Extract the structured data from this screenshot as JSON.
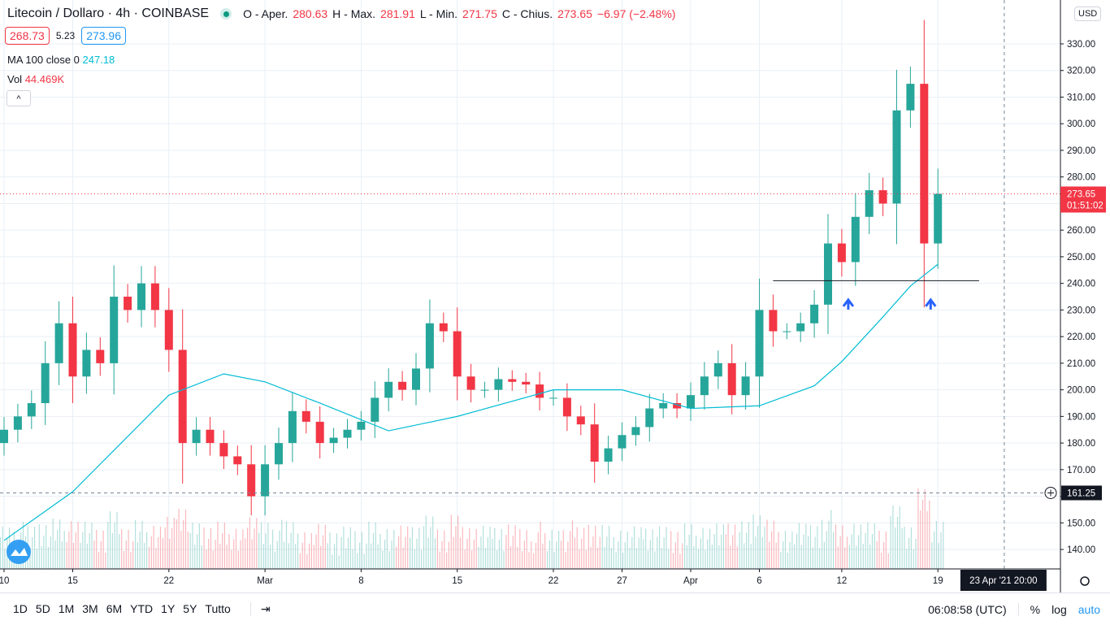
{
  "header": {
    "title": "Litecoin / Dollaro · 4h · COINBASE",
    "o_label": "O - Aper.",
    "o": "280.63",
    "h_label": "H - Max.",
    "h": "281.91",
    "l_label": "L - Min.",
    "l": "271.75",
    "c_label": "C - Chius.",
    "c": "273.65",
    "change": "−6.97 (−2.48%)"
  },
  "quote": {
    "bid": "268.73",
    "spread": "5.23",
    "ask": "273.96"
  },
  "indicators": {
    "ma_label": "MA 100 close 0",
    "ma_value": "247.18",
    "vol_label": "Vol",
    "vol_value": "44.469K"
  },
  "price_axis": {
    "currency": "USD",
    "last_price": "273.65",
    "countdown": "01:51:02",
    "crosshair_price": "161.25"
  },
  "time_axis": {
    "crosshair_label": "23 Apr '21  20:00"
  },
  "toolbar": {
    "ranges": [
      "1D",
      "5D",
      "1M",
      "3M",
      "6M",
      "YTD",
      "1Y",
      "5Y",
      "Tutto"
    ],
    "clock": "06:08:58 (UTC)",
    "percent": "%",
    "log": "log",
    "auto": "auto"
  },
  "colors": {
    "up": "#26a69a",
    "down": "#f23645",
    "ma": "#00bcd4",
    "accent": "#2196f3"
  },
  "chart_data": {
    "type": "candlestick",
    "symbol": "LTC/USD",
    "interval": "4h",
    "ylim": [
      135,
      342
    ],
    "yticks": [
      140,
      150,
      160,
      170,
      180,
      190,
      200,
      210,
      220,
      230,
      240,
      250,
      260,
      270,
      280,
      290,
      300,
      310,
      320,
      330
    ],
    "xticks": [
      {
        "date": "2021-02-10",
        "label": "10"
      },
      {
        "date": "2021-02-15",
        "label": "15"
      },
      {
        "date": "2021-02-22",
        "label": "22"
      },
      {
        "date": "2021-03-01",
        "label": "Mar"
      },
      {
        "date": "2021-03-08",
        "label": "8"
      },
      {
        "date": "2021-03-15",
        "label": "15"
      },
      {
        "date": "2021-03-22",
        "label": "22"
      },
      {
        "date": "2021-03-27",
        "label": "27"
      },
      {
        "date": "2021-04-01",
        "label": "Apr"
      },
      {
        "date": "2021-04-06",
        "label": "6"
      },
      {
        "date": "2021-04-12",
        "label": "12"
      },
      {
        "date": "2021-04-19",
        "label": "19"
      }
    ],
    "grid": true,
    "closes": [
      [
        "2021-02-09",
        180
      ],
      [
        "2021-02-10",
        185
      ],
      [
        "2021-02-11",
        190
      ],
      [
        "2021-02-12",
        195
      ],
      [
        "2021-02-13",
        210
      ],
      [
        "2021-02-14",
        225
      ],
      [
        "2021-02-15",
        205
      ],
      [
        "2021-02-16",
        215
      ],
      [
        "2021-02-17",
        210
      ],
      [
        "2021-02-18",
        235
      ],
      [
        "2021-02-19",
        230
      ],
      [
        "2021-02-20",
        240
      ],
      [
        "2021-02-21",
        230
      ],
      [
        "2021-02-22",
        215
      ],
      [
        "2021-02-23",
        180
      ],
      [
        "2021-02-24",
        185
      ],
      [
        "2021-02-25",
        180
      ],
      [
        "2021-02-26",
        175
      ],
      [
        "2021-02-27",
        172
      ],
      [
        "2021-02-28",
        160
      ],
      [
        "2021-03-01",
        172
      ],
      [
        "2021-03-02",
        180
      ],
      [
        "2021-03-03",
        192
      ],
      [
        "2021-03-04",
        188
      ],
      [
        "2021-03-05",
        180
      ],
      [
        "2021-03-06",
        182
      ],
      [
        "2021-03-07",
        185
      ],
      [
        "2021-03-08",
        188
      ],
      [
        "2021-03-09",
        197
      ],
      [
        "2021-03-10",
        203
      ],
      [
        "2021-03-11",
        200
      ],
      [
        "2021-03-12",
        208
      ],
      [
        "2021-03-13",
        225
      ],
      [
        "2021-03-14",
        222
      ],
      [
        "2021-03-15",
        205
      ],
      [
        "2021-03-16",
        200
      ],
      [
        "2021-03-17",
        200
      ],
      [
        "2021-03-18",
        204
      ],
      [
        "2021-03-19",
        203
      ],
      [
        "2021-03-20",
        202
      ],
      [
        "2021-03-21",
        197
      ],
      [
        "2021-03-22",
        197
      ],
      [
        "2021-03-23",
        190
      ],
      [
        "2021-03-24",
        187
      ],
      [
        "2021-03-25",
        173
      ],
      [
        "2021-03-26",
        178
      ],
      [
        "2021-03-27",
        183
      ],
      [
        "2021-03-28",
        186
      ],
      [
        "2021-03-29",
        193
      ],
      [
        "2021-03-30",
        195
      ],
      [
        "2021-03-31",
        193
      ],
      [
        "2021-04-01",
        198
      ],
      [
        "2021-04-02",
        205
      ],
      [
        "2021-04-03",
        210
      ],
      [
        "2021-04-04",
        198
      ],
      [
        "2021-04-05",
        205
      ],
      [
        "2021-04-06",
        230
      ],
      [
        "2021-04-07",
        222
      ],
      [
        "2021-04-08",
        222
      ],
      [
        "2021-04-09",
        225
      ],
      [
        "2021-04-10",
        232
      ],
      [
        "2021-04-11",
        255
      ],
      [
        "2021-04-12",
        248
      ],
      [
        "2021-04-13",
        265
      ],
      [
        "2021-04-14",
        275
      ],
      [
        "2021-04-15",
        270
      ],
      [
        "2021-04-16",
        305
      ],
      [
        "2021-04-17",
        315
      ],
      [
        "2021-04-18",
        255
      ],
      [
        "2021-04-19",
        273.65
      ]
    ],
    "ma100": [
      [
        "2021-02-10",
        143.4
      ],
      [
        "2021-02-15",
        161.7
      ],
      [
        "2021-02-22",
        198
      ],
      [
        "2021-02-26",
        206
      ],
      [
        "2021-03-01",
        203
      ],
      [
        "2021-03-05",
        195
      ],
      [
        "2021-03-10",
        184.6
      ],
      [
        "2021-03-15",
        190
      ],
      [
        "2021-03-22",
        200
      ],
      [
        "2021-03-27",
        200
      ],
      [
        "2021-04-01",
        193
      ],
      [
        "2021-04-06",
        194
      ],
      [
        "2021-04-10",
        201.5
      ],
      [
        "2021-04-12",
        210.6
      ],
      [
        "2021-04-15",
        227.4
      ],
      [
        "2021-04-17",
        239
      ],
      [
        "2021-04-19",
        247.18
      ]
    ],
    "annotations": {
      "support_line": {
        "price": 241,
        "from": "2021-04-07",
        "to": "2021-04-22"
      },
      "arrows": [
        {
          "date": "2021-04-12",
          "price": 232
        },
        {
          "date": "2021-04-18",
          "price": 232
        }
      ]
    },
    "crosshair": {
      "price": 161.25,
      "date": "2021-04-23 20:00"
    }
  }
}
